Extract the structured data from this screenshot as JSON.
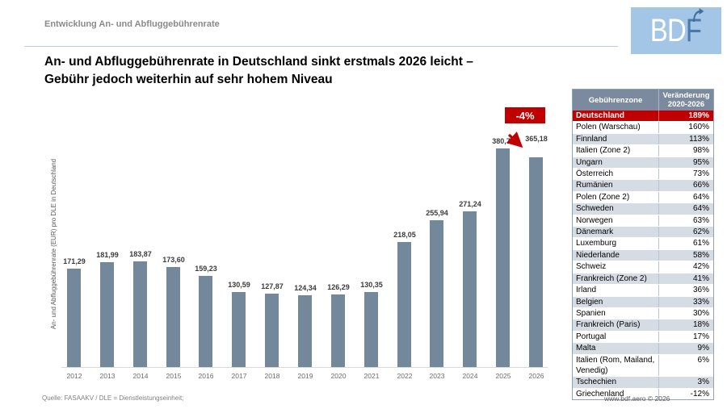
{
  "header": {
    "eyebrow": "Entwicklung An- und Abfluggebührenrate",
    "logo_bd": "BD",
    "logo_f": "F"
  },
  "title": {
    "line1": "An- und Abfluggebührenrate in Deutschland sinkt erstmals 2026 leicht –",
    "line2": "Gebühr jedoch weiterhin auf sehr hohem Niveau"
  },
  "chart_data": {
    "type": "bar",
    "title": "An- und Abfluggebührenrate in Deutschland sinkt erstmals 2026 leicht – Gebühr jedoch weiterhin auf sehr hohem Niveau",
    "categories": [
      "2012",
      "2013",
      "2014",
      "2015",
      "2016",
      "2017",
      "2018",
      "2019",
      "2020",
      "2021",
      "2022",
      "2023",
      "2024",
      "2025",
      "2026"
    ],
    "values": [
      171.29,
      181.99,
      183.87,
      173.6,
      159.23,
      130.59,
      127.87,
      124.34,
      126.29,
      130.35,
      218.05,
      255.94,
      271.24,
      380.71,
      365.18
    ],
    "value_labels": [
      "171,29",
      "181,99",
      "183,87",
      "173,60",
      "159,23",
      "130,59",
      "127,87",
      "124,34",
      "126,29",
      "130,35",
      "218,05",
      "255,94",
      "271,24",
      "380,71",
      "365,18"
    ],
    "xlabel": "",
    "ylabel": "An- und Abfluggebührenrate (EUR) pro DLE in Deutschland",
    "ylim": [
      0,
      400
    ],
    "grid": false,
    "legend": "none",
    "bar_color": "#74889b",
    "annotation": {
      "badge": "-4%",
      "badge_color": "#c00000",
      "from_year": "2025",
      "to_year": "2026"
    }
  },
  "table": {
    "headers": [
      "Gebührenzone",
      "Veränderung 2020-2026"
    ],
    "header_bg": "#7b8a9e",
    "highlight_color": "#c00000",
    "rows": [
      {
        "zone": "Deutschland",
        "change": "189%"
      },
      {
        "zone": "Polen (Warschau)",
        "change": "160%"
      },
      {
        "zone": "Finnland",
        "change": "113%"
      },
      {
        "zone": "Italien (Zone 2)",
        "change": "98%"
      },
      {
        "zone": "Ungarn",
        "change": "95%"
      },
      {
        "zone": "Österreich",
        "change": "73%"
      },
      {
        "zone": "Rumänien",
        "change": "66%"
      },
      {
        "zone": "Polen (Zone 2)",
        "change": "64%"
      },
      {
        "zone": "Schweden",
        "change": "64%"
      },
      {
        "zone": "Norwegen",
        "change": "63%"
      },
      {
        "zone": "Dänemark",
        "change": "62%"
      },
      {
        "zone": "Luxemburg",
        "change": "61%"
      },
      {
        "zone": "Niederlande",
        "change": "58%"
      },
      {
        "zone": "Schweiz",
        "change": "42%"
      },
      {
        "zone": "Frankreich (Zone 2)",
        "change": "41%"
      },
      {
        "zone": "Irland",
        "change": "36%"
      },
      {
        "zone": "Belgien",
        "change": "33%"
      },
      {
        "zone": "Spanien",
        "change": "30%"
      },
      {
        "zone": "Frankreich (Paris)",
        "change": "18%"
      },
      {
        "zone": "Portugal",
        "change": "17%"
      },
      {
        "zone": "Malta",
        "change": "9%"
      },
      {
        "zone": "Italien (Rom, Mailand, Venedig)",
        "change": "6%"
      },
      {
        "zone": "Tschechien",
        "change": "3%"
      },
      {
        "zone": "Griechenland",
        "change": "-12%"
      }
    ]
  },
  "footer": {
    "source": "Quelle: FASAAKV / DLE = Dienstleistungseinheit;",
    "site": "www.bdf.aero © 2026"
  }
}
